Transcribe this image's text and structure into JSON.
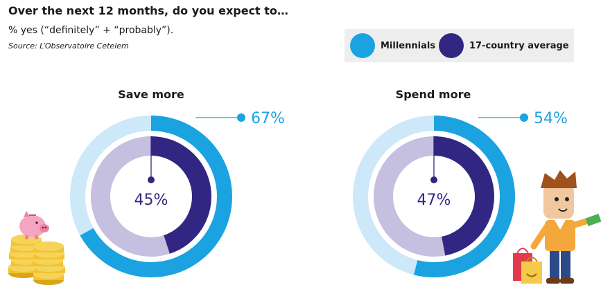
{
  "header": {
    "title": "Over the next 12 months, do you expect to…",
    "subtitle": "% yes (“definitely” + “probably”).",
    "source": "Source: L’Observatoire Cetelem"
  },
  "legend": [
    {
      "label": "Millennials",
      "color": "#1aa3e0"
    },
    {
      "label": "17-country average",
      "color": "#322683"
    }
  ],
  "colors": {
    "millennials": "#1aa3e0",
    "millennials_track": "#cde8f8",
    "average": "#322683",
    "average_track": "#c5bfe0"
  },
  "chart_data": [
    {
      "type": "pie",
      "title": "Save more",
      "series": [
        {
          "name": "Millennials",
          "values": [
            67
          ],
          "label": "67%"
        },
        {
          "name": "17-country average",
          "values": [
            45
          ],
          "label": "45%"
        }
      ]
    },
    {
      "type": "pie",
      "title": "Spend more",
      "series": [
        {
          "name": "Millennials",
          "values": [
            54
          ],
          "label": "54%"
        },
        {
          "name": "17-country average",
          "values": [
            47
          ],
          "label": "47%"
        }
      ]
    }
  ],
  "illustrations": [
    "piggy-bank-coins-illustration",
    "shopper-with-bags-illustration"
  ]
}
